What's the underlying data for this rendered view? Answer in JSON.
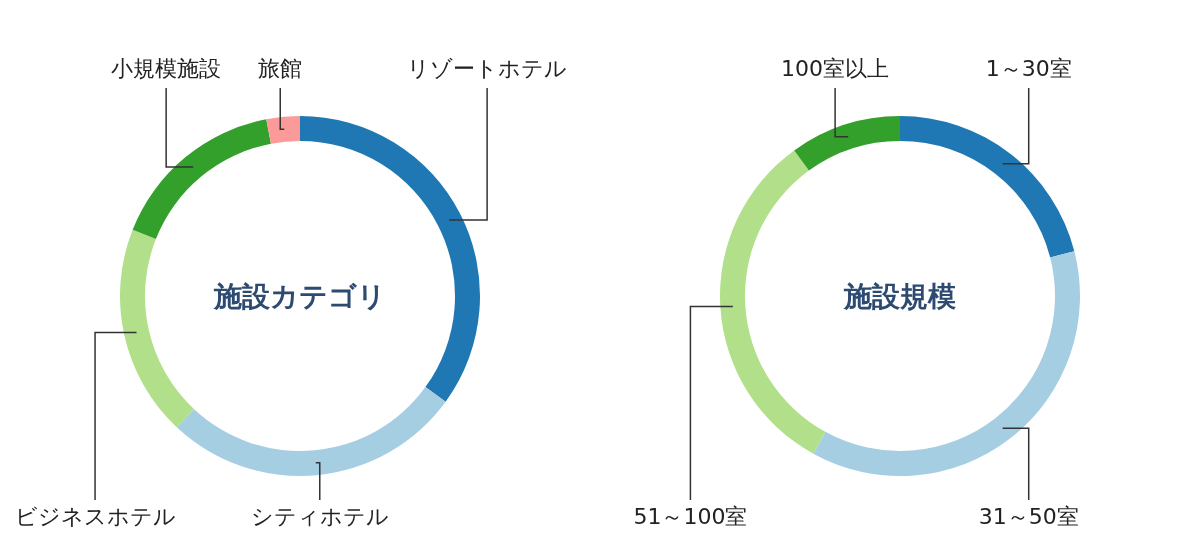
{
  "chart_data": [
    {
      "type": "donut",
      "title": "施設カテゴリ",
      "categories": [
        "リゾートホテル",
        "シティホテル",
        "ビジネスホテル",
        "小規模施設",
        "旅館"
      ],
      "values": [
        35,
        27,
        19,
        16,
        3
      ],
      "colors": [
        "#1f78b4",
        "#a6cee3",
        "#b2df8a",
        "#33a02c",
        "#fb9a99"
      ]
    },
    {
      "type": "donut",
      "title": "施設規模",
      "categories": [
        "1～30室",
        "31～50室",
        "51～100室",
        "100室以上"
      ],
      "values": [
        21,
        37,
        32,
        10
      ],
      "colors": [
        "#1f78b4",
        "#a6cee3",
        "#b2df8a",
        "#33a02c"
      ]
    }
  ]
}
